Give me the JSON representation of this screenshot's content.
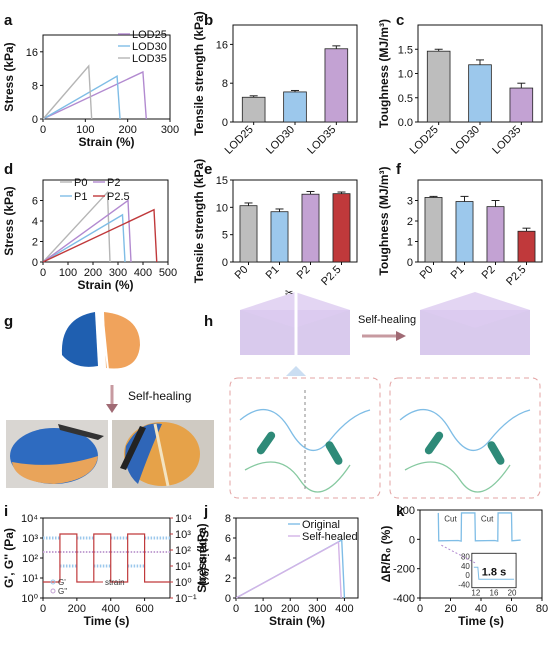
{
  "panels": {
    "a": "a",
    "b": "b",
    "c": "c",
    "d": "d",
    "e": "e",
    "f": "f",
    "g": "g",
    "h": "h",
    "i": "i",
    "j": "j",
    "k": "k"
  },
  "colors": {
    "gray": "#bdbdbd",
    "blue": "#9cc8ec",
    "purple": "#c3a2d3",
    "red": "#c0393b",
    "line_gray": "#b5b5b5",
    "line_blue": "#7fbde6",
    "line_purple": "#b28ad0",
    "line_red": "#c0393b",
    "line_lightpurple": "#d3b3e6"
  },
  "photo_g": {
    "label": "Self-healing"
  },
  "scheme_h": {
    "label": "Self-healing"
  },
  "chart_data": [
    {
      "id": "a",
      "type": "line",
      "xlabel": "Strain (%)",
      "ylabel": "Stress (kPa)",
      "xlim": [
        0,
        300
      ],
      "ylim": [
        0,
        20
      ],
      "xticks": [
        0,
        100,
        200,
        300
      ],
      "yticks": [
        0,
        8,
        16
      ],
      "series": [
        {
          "name": "LOD25",
          "color": "#b28ad0",
          "x": [
            0,
            236,
            244
          ],
          "y": [
            0,
            11.2,
            0
          ]
        },
        {
          "name": "LOD30",
          "color": "#7fbde6",
          "x": [
            0,
            175,
            182
          ],
          "y": [
            0,
            10.2,
            0
          ]
        },
        {
          "name": "LOD35",
          "color": "#b5b5b5",
          "x": [
            0,
            108,
            115
          ],
          "y": [
            0,
            12.6,
            0
          ]
        }
      ]
    },
    {
      "id": "b",
      "type": "bar",
      "ylabel": "Tensile strength (kPa)",
      "ylim": [
        0,
        20
      ],
      "yticks": [
        0,
        8,
        16
      ],
      "categories": [
        "LOD25",
        "LOD30",
        "LOD35"
      ],
      "values": [
        5.1,
        6.2,
        15.1
      ],
      "errors": [
        0.3,
        0.3,
        0.6
      ],
      "colors": [
        "#bdbdbd",
        "#9cc8ec",
        "#c3a2d3"
      ]
    },
    {
      "id": "c",
      "type": "bar",
      "ylabel": "Toughness (MJ/m³)",
      "ylim": [
        0,
        2.0
      ],
      "yticks": [
        0.0,
        0.5,
        1.0,
        1.5
      ],
      "categories": [
        "LOD25",
        "LOD30",
        "LOD35"
      ],
      "values": [
        1.46,
        1.18,
        0.7
      ],
      "errors": [
        0.04,
        0.1,
        0.1
      ],
      "colors": [
        "#bdbdbd",
        "#9cc8ec",
        "#c3a2d3"
      ]
    },
    {
      "id": "d",
      "type": "line",
      "xlabel": "Strain (%)",
      "ylabel": "Stress (kPa)",
      "xlim": [
        0,
        500
      ],
      "ylim": [
        0,
        8
      ],
      "xticks": [
        0,
        100,
        200,
        300,
        400,
        500
      ],
      "yticks": [
        0,
        2,
        4,
        6
      ],
      "series": [
        {
          "name": "P0",
          "color": "#b5b5b5",
          "x": [
            0,
            258,
            268
          ],
          "y": [
            0,
            6.8,
            0
          ]
        },
        {
          "name": "P1",
          "color": "#7fbde6",
          "x": [
            0,
            318,
            328
          ],
          "y": [
            0,
            4.6,
            0
          ]
        },
        {
          "name": "P2",
          "color": "#b28ad0",
          "x": [
            0,
            340,
            352
          ],
          "y": [
            0,
            6.0,
            0
          ]
        },
        {
          "name": "P2.5",
          "color": "#c0393b",
          "x": [
            0,
            444,
            455
          ],
          "y": [
            0,
            5.1,
            0
          ]
        }
      ]
    },
    {
      "id": "e",
      "type": "bar",
      "ylabel": "Tensile strength (kPa)",
      "ylim": [
        0,
        15
      ],
      "yticks": [
        0,
        5,
        10,
        15
      ],
      "categories": [
        "P0",
        "P1",
        "P2",
        "P2.5"
      ],
      "values": [
        10.3,
        9.2,
        12.4,
        12.5
      ],
      "errors": [
        0.5,
        0.5,
        0.5,
        0.3
      ],
      "colors": [
        "#bdbdbd",
        "#9cc8ec",
        "#c3a2d3",
        "#c0393b"
      ]
    },
    {
      "id": "f",
      "type": "bar",
      "ylabel": "Toughness (MJ/m³)",
      "ylim": [
        0,
        4
      ],
      "yticks": [
        0,
        1,
        2,
        3
      ],
      "categories": [
        "P0",
        "P1",
        "P2",
        "P2.5"
      ],
      "values": [
        3.15,
        2.95,
        2.7,
        1.5
      ],
      "errors": [
        0.05,
        0.25,
        0.3,
        0.15
      ],
      "colors": [
        "#bdbdbd",
        "#9cc8ec",
        "#c3a2d3",
        "#c0393b"
      ]
    },
    {
      "id": "i",
      "type": "line",
      "xlabel": "Time (s)",
      "ylabel": "G', G'' (Pa)",
      "ylabel_right": "Strain (%)",
      "xlim": [
        0,
        750
      ],
      "ylim_log": [
        0,
        4
      ],
      "ylim_right_log": [
        -1,
        4
      ],
      "xticks": [
        0,
        200,
        400,
        600
      ],
      "yticks_labels": [
        "10⁰",
        "10¹",
        "10²",
        "10³",
        "10⁴"
      ],
      "yticks_right_labels": [
        "10⁻¹",
        "10⁰",
        "10¹",
        "10²",
        "10³",
        "10⁴"
      ],
      "legend": [
        "G'",
        "G''",
        "strain"
      ],
      "strain_steps": [
        {
          "from": 0,
          "to": 100,
          "strain": 1
        },
        {
          "from": 100,
          "to": 200,
          "strain": 1000
        },
        {
          "from": 200,
          "to": 300,
          "strain": 1
        },
        {
          "from": 300,
          "to": 400,
          "strain": 1000
        },
        {
          "from": 400,
          "to": 500,
          "strain": 1
        },
        {
          "from": 500,
          "to": 600,
          "strain": 1000
        },
        {
          "from": 600,
          "to": 750,
          "strain": 1
        }
      ],
      "g_prime_low_strain": 1000,
      "g_prime_high_strain": 40,
      "g_dprime_low_strain": 200,
      "g_dprime_high_strain": 200
    },
    {
      "id": "j",
      "type": "line",
      "xlabel": "Strain (%)",
      "ylabel": "Stress (kPa)",
      "xlim": [
        0,
        450
      ],
      "ylim": [
        0,
        8
      ],
      "xticks": [
        0,
        100,
        200,
        300,
        400
      ],
      "yticks": [
        0,
        2,
        4,
        6,
        8
      ],
      "series": [
        {
          "name": "Original",
          "color": "#7fbde6",
          "x": [
            0,
            390,
            400
          ],
          "y": [
            0,
            5.8,
            0
          ]
        },
        {
          "name": "Self-healed",
          "color": "#d3b3e6",
          "x": [
            0,
            378,
            388
          ],
          "y": [
            0,
            5.6,
            0
          ]
        }
      ]
    },
    {
      "id": "k",
      "type": "line",
      "xlabel": "Time (s)",
      "ylabel": "ΔR/R₀ (%)",
      "xlim": [
        0,
        80
      ],
      "ylim": [
        -400,
        200
      ],
      "xticks": [
        0,
        20,
        40,
        60,
        80
      ],
      "yticks": [
        -400,
        -200,
        0,
        200
      ],
      "annotations": [
        "Cut",
        "Cut"
      ],
      "inset": {
        "xlim": [
          12,
          20
        ],
        "xticks": [
          12,
          16,
          20
        ],
        "yticks": [
          -40,
          0,
          40,
          80
        ],
        "label": "1.8 s"
      }
    }
  ]
}
